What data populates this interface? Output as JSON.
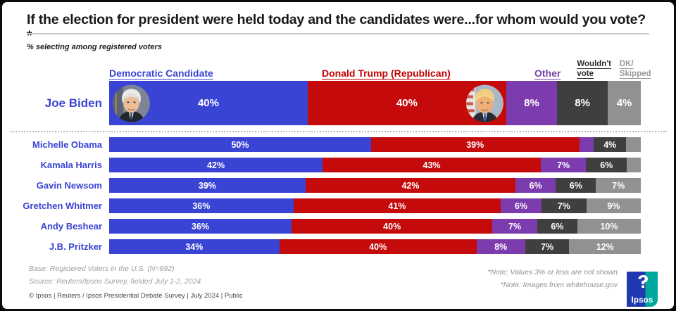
{
  "title": "If the election for president were held today and the candidates were...for whom would you vote?*",
  "subtitle": "% selecting among registered voters",
  "columns": [
    {
      "id": "dem",
      "label": "Democratic Candidate",
      "color": "#3a44d4",
      "header_color": "#3a44d4"
    },
    {
      "id": "trump",
      "label": "Donald Trump (Republican)",
      "color": "#c50a0c",
      "header_color": "#c00000"
    },
    {
      "id": "other",
      "label": "Other",
      "color": "#7d3cae",
      "header_color": "#7440a8"
    },
    {
      "id": "wouldnt",
      "label": "Wouldn't vote",
      "color": "#3f3f3f",
      "header_color": "#2d2d2d"
    },
    {
      "id": "dk",
      "label": "DK/ Skipped",
      "color": "#919191",
      "header_color": "#9a9a9a"
    }
  ],
  "chart_data": {
    "type": "bar",
    "orientation": "horizontal-stacked",
    "unit": "%",
    "label_hide_threshold": 3,
    "series": [
      "Democratic Candidate",
      "Donald Trump (Republican)",
      "Other",
      "Wouldn't vote",
      "DK/Skipped"
    ],
    "rows": [
      {
        "label": "Joe Biden",
        "featured": true,
        "values": [
          40,
          40,
          8,
          8,
          4
        ]
      },
      {
        "label": "Michelle Obama",
        "featured": false,
        "values": [
          50,
          39,
          3,
          4,
          3
        ]
      },
      {
        "label": "Kamala Harris",
        "featured": false,
        "values": [
          42,
          43,
          7,
          6,
          3
        ]
      },
      {
        "label": "Gavin Newsom",
        "featured": false,
        "values": [
          39,
          42,
          6,
          6,
          7
        ]
      },
      {
        "label": "Gretchen Whitmer",
        "featured": false,
        "values": [
          36,
          41,
          6,
          7,
          9
        ]
      },
      {
        "label": "Andy Beshear",
        "featured": false,
        "values": [
          36,
          40,
          7,
          6,
          10
        ]
      },
      {
        "label": "J.B. Pritzker",
        "featured": false,
        "values": [
          34,
          40,
          8,
          7,
          12
        ]
      }
    ],
    "row_label_color": "#3a44d4",
    "legend_position": "top",
    "grid": false
  },
  "footer": {
    "base": "Base: Registered Voters in the U.S. (N=892)",
    "source": "Source: Reuters/Ipsos Survey, fielded July 1-2, 2024",
    "copyright": "© Ipsos | Reuters / Ipsos Presidential Debate Survey | July 2024 | Public"
  },
  "notes": {
    "note1": "*Note: Values 3% or less are not shown",
    "note2": "*Note: Images from whitehouse.gov"
  },
  "logo": {
    "text": "Ipsos",
    "blue": "#2038b0",
    "teal": "#00a79d"
  }
}
